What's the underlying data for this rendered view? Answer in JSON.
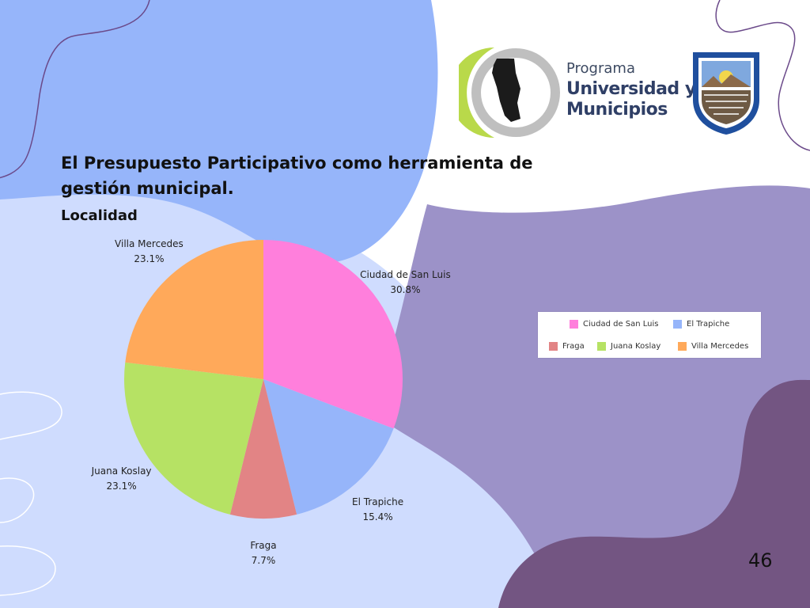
{
  "slide": {
    "title": "El Presupuesto Participativo como herramienta de gestión municipal.",
    "page_number": "46"
  },
  "branding": {
    "program_line1": "Programa",
    "program_line2": "Universidad y",
    "program_line3": "Municipios"
  },
  "chart_data": {
    "type": "pie",
    "title": "Localidad",
    "categories": [
      "Ciudad de San Luis",
      "El Trapiche",
      "Fraga",
      "Juana Koslay",
      "Villa Mercedes"
    ],
    "values": [
      30.8,
      15.4,
      7.7,
      23.1,
      23.1
    ],
    "labels": [
      "30.8%",
      "15.4%",
      "7.7%",
      "23.1%",
      "23.1%"
    ],
    "colors": [
      "#ff7fdc",
      "#96b5fa",
      "#e28485",
      "#b6e264",
      "#ffa95a"
    ],
    "start_angle": "12 o'clock",
    "direction": "clockwise",
    "legend": {
      "placement": "right",
      "items": [
        "Ciudad de San Luis",
        "El Trapiche",
        "Fraga",
        "Juana Koslay",
        "Villa Mercedes"
      ]
    }
  },
  "colors": {
    "blob_blue": "#96b5fa",
    "blob_light_blue": "#cfdcfe",
    "blob_lavender": "#9c92c8",
    "blob_purple": "#735582",
    "squiggle": "#6b4a8a"
  }
}
